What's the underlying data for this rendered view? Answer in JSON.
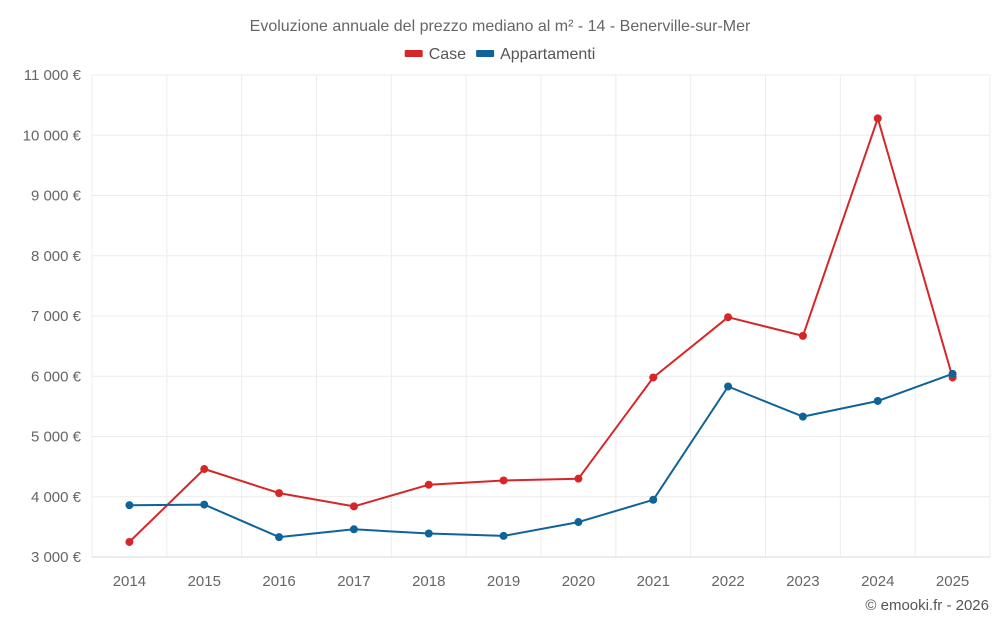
{
  "chart_data": {
    "type": "line",
    "title": "Evoluzione annuale del prezzo mediano al m² - 14 - Benerville-sur-Mer",
    "categories": [
      "2014",
      "2015",
      "2016",
      "2017",
      "2018",
      "2019",
      "2020",
      "2021",
      "2022",
      "2023",
      "2024",
      "2025"
    ],
    "series": [
      {
        "name": "Case",
        "color": "#d62728",
        "values": [
          3250,
          4460,
          4060,
          3840,
          4200,
          4270,
          4300,
          5980,
          6980,
          6670,
          10280,
          5980
        ]
      },
      {
        "name": "Appartamenti",
        "color": "#0e6399",
        "values": [
          3860,
          3870,
          3330,
          3460,
          3390,
          3350,
          3580,
          3950,
          5830,
          5330,
          5590,
          6040
        ]
      }
    ],
    "ylim": [
      3000,
      11000
    ],
    "yticks": [
      3000,
      4000,
      5000,
      6000,
      7000,
      8000,
      9000,
      10000,
      11000
    ],
    "ytick_labels": [
      "3 000 €",
      "4 000 €",
      "5 000 €",
      "6 000 €",
      "7 000 €",
      "8 000 €",
      "9 000 €",
      "10 000 €",
      "11 000 €"
    ],
    "legend_position": "top-center",
    "grid": true,
    "xlabel": "",
    "ylabel": ""
  },
  "credit": "© emooki.fr - 2026"
}
